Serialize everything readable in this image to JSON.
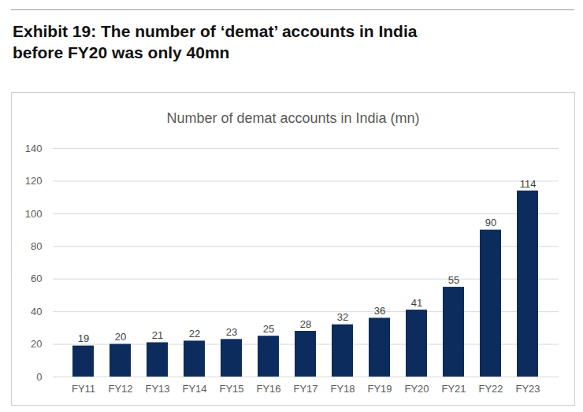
{
  "chart_data": {
    "type": "bar",
    "title": "Exhibit 19: The number of ‘demat’ accounts in India before FY20 was only 40mn",
    "subtitle": "Number of demat accounts in India (mn)",
    "categories": [
      "FY11",
      "FY12",
      "FY13",
      "FY14",
      "FY15",
      "FY16",
      "FY17",
      "FY18",
      "FY19",
      "FY20",
      "FY21",
      "FY22",
      "FY23"
    ],
    "values": [
      19,
      20,
      21,
      22,
      23,
      25,
      28,
      32,
      36,
      41,
      55,
      90,
      114
    ],
    "color": "#0b2c5c",
    "ylim": [
      0,
      140
    ],
    "yticks": [
      0,
      20,
      40,
      60,
      80,
      100,
      120,
      140
    ],
    "grid": true,
    "data_labels": true
  }
}
